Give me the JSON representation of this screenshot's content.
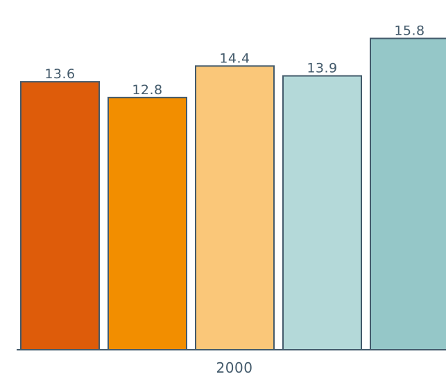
{
  "chart_data": {
    "type": "bar",
    "categories": [
      "2000"
    ],
    "series": [
      {
        "values": [
          13.6
        ],
        "color": "#de5c0a"
      },
      {
        "values": [
          12.8
        ],
        "color": "#f28e00"
      },
      {
        "values": [
          14.4
        ],
        "color": "#fac779"
      },
      {
        "values": [
          13.9
        ],
        "color": "#b4d9d9"
      },
      {
        "values": [
          15.8
        ],
        "color": "#95c7c8"
      }
    ],
    "value_labels": [
      "13.6",
      "12.8",
      "14.4",
      "13.9",
      "15.8"
    ],
    "ylim": [
      0,
      17
    ],
    "grid": false,
    "legend": "none",
    "title": "",
    "xlabel": "",
    "ylabel": ""
  }
}
